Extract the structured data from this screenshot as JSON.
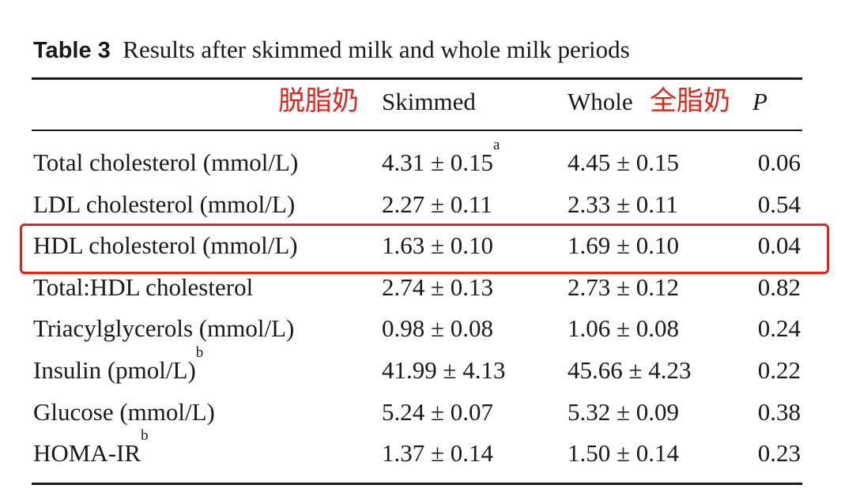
{
  "caption": {
    "label": "Table 3",
    "title": "Results after skimmed milk and whole milk periods"
  },
  "annotations": {
    "skimmed": "脱脂奶",
    "whole": "全脂奶"
  },
  "table": {
    "header": {
      "skimmed": "Skimmed",
      "whole": "Whole",
      "p": "P"
    },
    "rows": [
      {
        "label": "Total cholesterol (mmol/L)",
        "skimmed": "4.31 ± 0.15",
        "skimmed_note": "a",
        "whole": "4.45 ± 0.15",
        "p": "0.06"
      },
      {
        "label": "LDL cholesterol (mmol/L)",
        "skimmed": "2.27 ± 0.11",
        "whole": "2.33 ± 0.11",
        "p": "0.54"
      },
      {
        "label": "HDL cholesterol (mmol/L)",
        "skimmed": "1.63 ± 0.10",
        "whole": "1.69 ± 0.10",
        "p": "0.04"
      },
      {
        "label": "Total:HDL cholesterol",
        "skimmed": "2.74 ± 0.13",
        "whole": "2.73 ± 0.12",
        "p": "0.82"
      },
      {
        "label": "Triacylglycerols (mmol/L)",
        "skimmed": "0.98 ± 0.08",
        "whole": "1.06 ± 0.08",
        "p": "0.24"
      },
      {
        "label": "Insulin (pmol/L)",
        "label_note": "b",
        "skimmed": "41.99 ± 4.13",
        "whole": "45.66 ± 4.23",
        "p": "0.22"
      },
      {
        "label": "Glucose (mmol/L)",
        "skimmed": "5.24 ± 0.07",
        "whole": "5.32 ± 0.09",
        "p": "0.38"
      },
      {
        "label": "HOMA-IR",
        "label_note": "b",
        "skimmed": "1.37 ± 0.14",
        "whole": "1.50 ± 0.14",
        "p": "0.23"
      }
    ]
  }
}
